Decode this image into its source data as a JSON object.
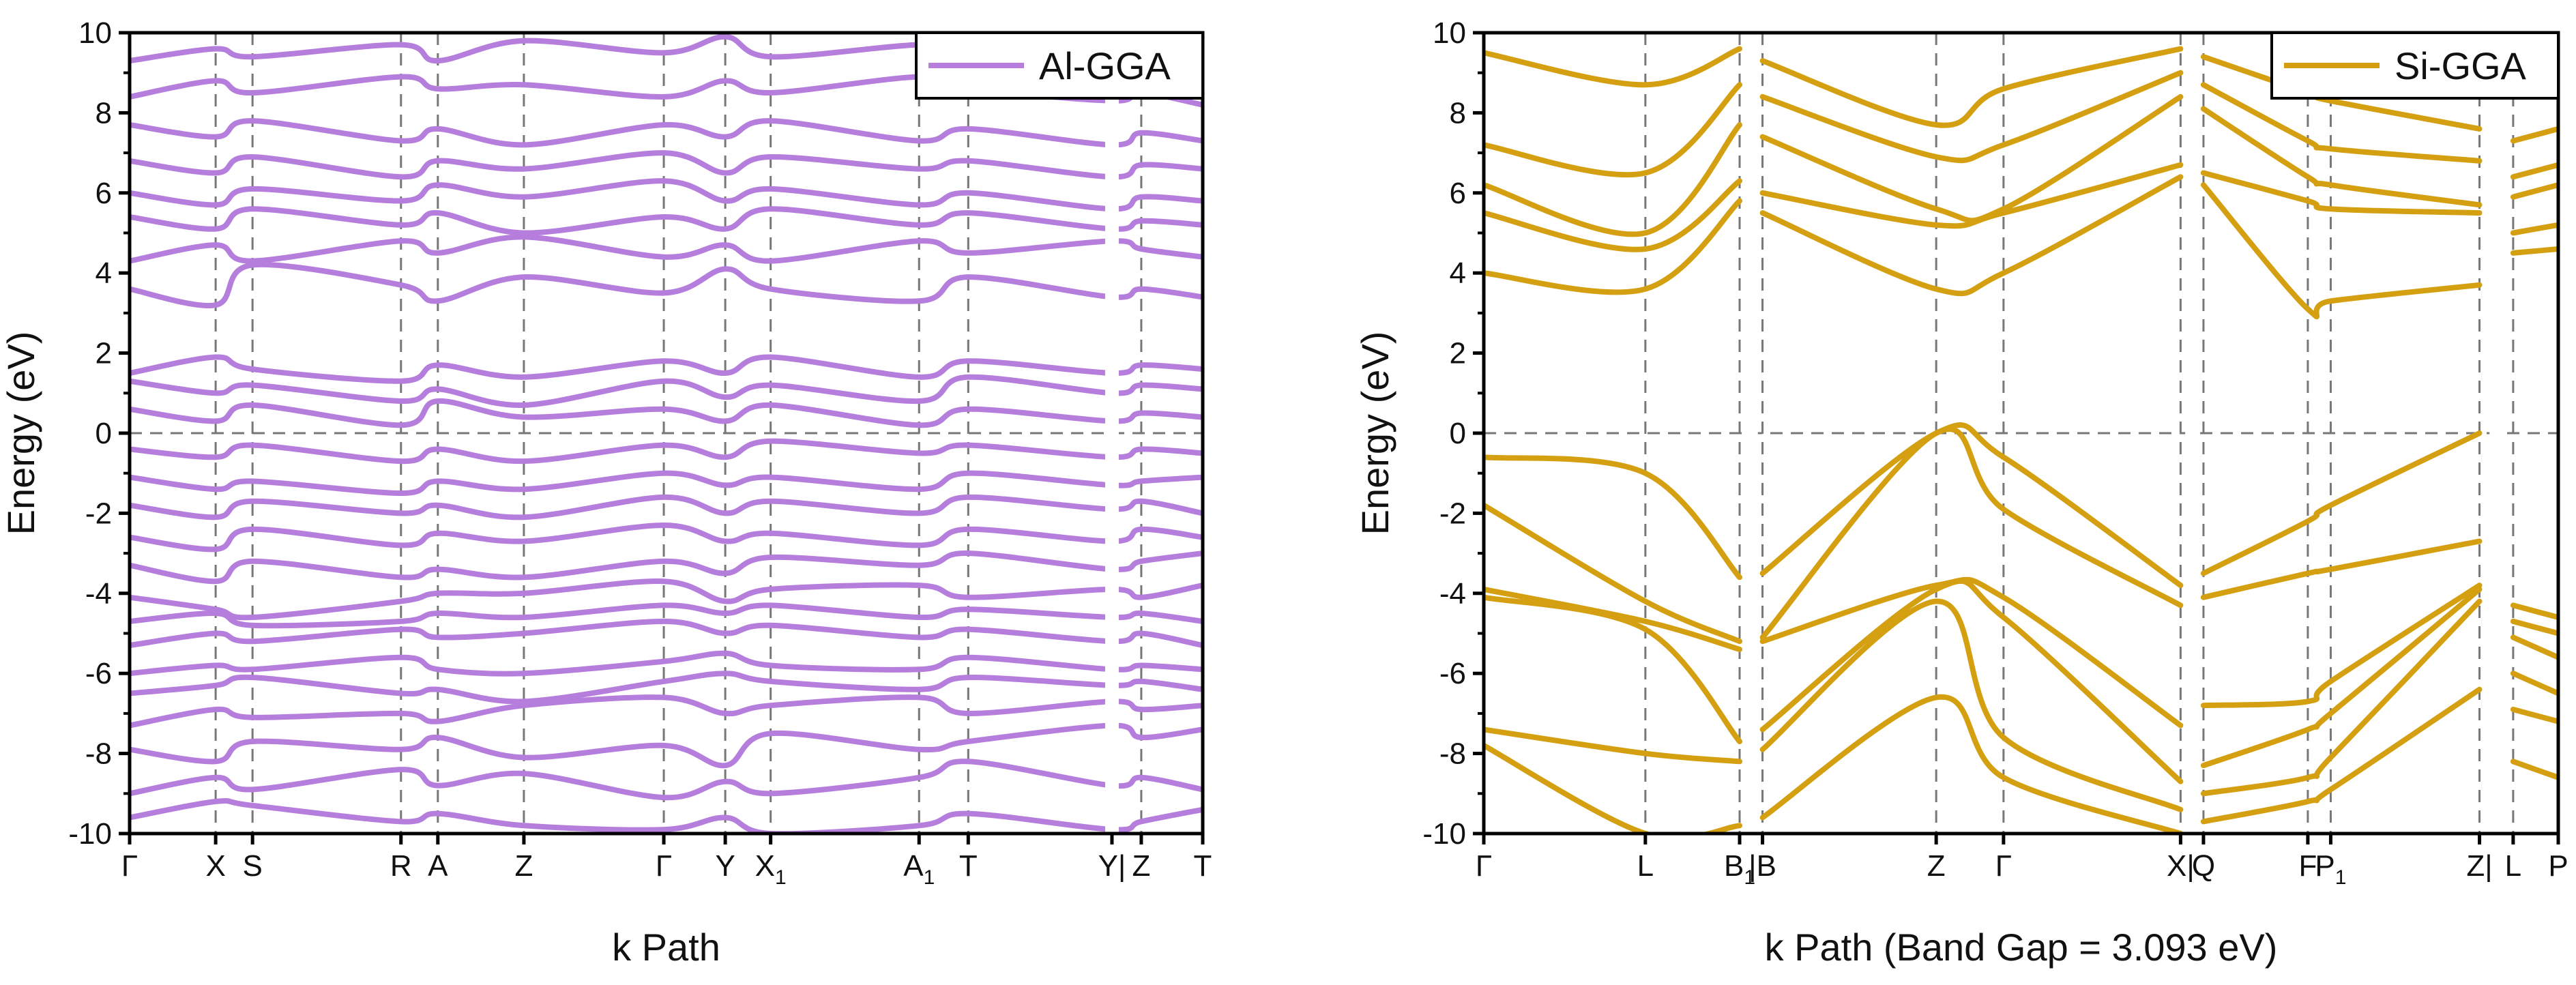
{
  "chart_data": [
    {
      "type": "line",
      "title": "",
      "legend": "Al-GGA",
      "legend_position": "top-right",
      "xlabel": "k Path",
      "ylabel": "Energy (eV)",
      "ylim": [
        -10,
        10
      ],
      "yticks": [
        -10,
        -8,
        -6,
        -4,
        -2,
        0,
        2,
        4,
        6,
        8,
        10
      ],
      "color": "#b57edc",
      "kpoints": [
        {
          "label": "Γ",
          "sub": "",
          "x": 0
        },
        {
          "label": "X",
          "sub": "",
          "x": 0.91
        },
        {
          "label": "S",
          "sub": "",
          "x": 1.3
        },
        {
          "label": "R",
          "sub": "",
          "x": 2.87
        },
        {
          "label": "A",
          "sub": "",
          "x": 3.26
        },
        {
          "label": "Z",
          "sub": "",
          "x": 4.17
        },
        {
          "label": "Γ",
          "sub": "",
          "x": 5.65
        },
        {
          "label": "Y",
          "sub": "",
          "x": 6.3
        },
        {
          "label": "X",
          "sub": "1",
          "x": 6.78
        },
        {
          "label": "A",
          "sub": "1",
          "x": 8.35
        },
        {
          "label": "T",
          "sub": "",
          "x": 8.87
        },
        {
          "label": "Y|",
          "sub": "",
          "x": 10.39
        },
        {
          "label": "Z",
          "sub": "",
          "x": 10.7
        },
        {
          "label": "T",
          "sub": "",
          "x": 11.35
        }
      ],
      "break_at": 10.39,
      "xmax": 11.35,
      "bands": [
        [
          -9.6,
          -9.2,
          -9.3,
          -9.7,
          -9.5,
          -9.8,
          -9.9,
          -9.6,
          -10.0,
          -9.8,
          -9.5,
          -9.9,
          -9.7,
          -9.4
        ],
        [
          -9.0,
          -8.6,
          -8.9,
          -8.4,
          -8.8,
          -8.5,
          -9.1,
          -8.7,
          -9.0,
          -8.6,
          -8.2,
          -8.8,
          -8.6,
          -8.9
        ],
        [
          -7.9,
          -8.2,
          -7.7,
          -7.9,
          -7.6,
          -8.1,
          -7.8,
          -8.3,
          -7.5,
          -7.9,
          -7.7,
          -7.3,
          -7.6,
          -7.4
        ],
        [
          -7.3,
          -6.9,
          -7.1,
          -7.0,
          -7.2,
          -6.8,
          -6.6,
          -7.0,
          -6.8,
          -6.6,
          -7.0,
          -6.7,
          -6.9,
          -6.8
        ],
        [
          -6.5,
          -6.3,
          -6.1,
          -6.5,
          -6.4,
          -6.7,
          -6.2,
          -6.0,
          -6.2,
          -6.4,
          -6.1,
          -6.3,
          -6.2,
          -6.4
        ],
        [
          -6.0,
          -5.8,
          -5.9,
          -5.6,
          -5.9,
          -6.0,
          -5.7,
          -5.5,
          -5.8,
          -5.9,
          -5.6,
          -5.9,
          -5.8,
          -5.9
        ],
        [
          -5.3,
          -5.0,
          -5.2,
          -4.9,
          -5.1,
          -5.0,
          -4.7,
          -5.0,
          -4.8,
          -5.1,
          -4.9,
          -5.2,
          -5.0,
          -5.3
        ],
        [
          -4.7,
          -4.5,
          -4.8,
          -4.7,
          -4.5,
          -4.6,
          -4.3,
          -4.5,
          -4.3,
          -4.6,
          -4.4,
          -4.6,
          -4.5,
          -4.7
        ],
        [
          -4.1,
          -4.4,
          -4.6,
          -4.2,
          -4.0,
          -4.0,
          -3.7,
          -4.2,
          -3.9,
          -3.8,
          -4.1,
          -3.9,
          -4.1,
          -3.8
        ],
        [
          -3.3,
          -3.7,
          -3.2,
          -3.6,
          -3.4,
          -3.6,
          -3.2,
          -3.5,
          -3.1,
          -3.3,
          -3.0,
          -3.4,
          -3.2,
          -3.0
        ],
        [
          -2.6,
          -2.9,
          -2.4,
          -2.8,
          -2.5,
          -2.7,
          -2.3,
          -2.7,
          -2.5,
          -2.8,
          -2.4,
          -2.7,
          -2.4,
          -2.6
        ],
        [
          -1.8,
          -2.1,
          -1.7,
          -2.0,
          -1.8,
          -2.1,
          -1.6,
          -2.0,
          -1.7,
          -2.0,
          -1.6,
          -1.9,
          -1.7,
          -2.0
        ],
        [
          -1.1,
          -1.4,
          -1.2,
          -1.5,
          -1.2,
          -1.4,
          -1.0,
          -1.3,
          -1.1,
          -1.4,
          -1.0,
          -1.3,
          -1.2,
          -1.1
        ],
        [
          -0.4,
          -0.6,
          -0.3,
          -0.7,
          -0.4,
          -0.7,
          -0.3,
          -0.6,
          -0.2,
          -0.5,
          -0.3,
          -0.6,
          -0.4,
          -0.5
        ],
        [
          0.6,
          0.3,
          0.7,
          0.2,
          0.8,
          0.4,
          0.6,
          0.3,
          0.7,
          0.2,
          0.6,
          0.3,
          0.5,
          0.4
        ],
        [
          1.3,
          1.0,
          1.2,
          0.8,
          1.1,
          0.7,
          1.3,
          0.9,
          1.2,
          0.8,
          1.4,
          1.0,
          1.2,
          1.1
        ],
        [
          1.5,
          1.9,
          1.6,
          1.3,
          1.7,
          1.4,
          1.8,
          1.5,
          1.9,
          1.4,
          1.8,
          1.5,
          1.7,
          1.6
        ],
        [
          3.6,
          3.2,
          4.2,
          3.7,
          3.3,
          3.9,
          3.5,
          4.1,
          3.6,
          3.3,
          3.9,
          3.4,
          3.6,
          3.4
        ],
        [
          4.3,
          4.7,
          4.3,
          4.8,
          4.5,
          4.9,
          4.4,
          4.7,
          4.3,
          4.8,
          4.5,
          4.8,
          4.6,
          4.4
        ],
        [
          5.4,
          5.1,
          5.6,
          5.2,
          5.5,
          5.0,
          5.4,
          5.1,
          5.6,
          5.2,
          5.5,
          5.1,
          5.3,
          5.2
        ],
        [
          6.0,
          5.7,
          6.1,
          5.8,
          6.2,
          5.9,
          6.3,
          5.8,
          6.1,
          5.7,
          6.0,
          5.6,
          5.9,
          5.8
        ],
        [
          6.8,
          6.5,
          6.9,
          6.4,
          6.8,
          6.6,
          7.0,
          6.5,
          6.9,
          6.6,
          6.8,
          6.4,
          6.7,
          6.6
        ],
        [
          7.7,
          7.4,
          7.8,
          7.3,
          7.6,
          7.2,
          7.7,
          7.4,
          7.8,
          7.3,
          7.6,
          7.2,
          7.5,
          7.3
        ],
        [
          8.4,
          8.8,
          8.5,
          8.9,
          8.6,
          8.7,
          8.4,
          8.8,
          8.5,
          8.9,
          8.6,
          8.3,
          8.5,
          8.2
        ],
        [
          9.3,
          9.6,
          9.4,
          9.7,
          9.3,
          9.8,
          9.5,
          9.9,
          9.4,
          9.7,
          9.5,
          9.8,
          9.6,
          9.4
        ]
      ]
    },
    {
      "type": "line",
      "title": "",
      "legend": "Si-GGA",
      "legend_position": "top-right",
      "xlabel": "k Path (Band Gap = 3.093 eV)",
      "ylabel": "Energy (eV)",
      "ylim": [
        -10,
        10
      ],
      "yticks": [
        -10,
        -8,
        -6,
        -4,
        -2,
        0,
        2,
        4,
        6,
        8,
        10
      ],
      "color": "#d4a011",
      "kpoints": [
        {
          "label": "Γ",
          "sub": "",
          "x": 0
        },
        {
          "label": "L",
          "sub": "",
          "x": 2.4
        },
        {
          "label": "B",
          "sub": "1",
          "x": 3.8
        },
        {
          "label": "|B",
          "sub": "",
          "x": 4.14
        },
        {
          "label": "Z",
          "sub": "",
          "x": 6.72
        },
        {
          "label": "Γ",
          "sub": "",
          "x": 7.72
        },
        {
          "label": "X|",
          "sub": "",
          "x": 10.35
        },
        {
          "label": "Q",
          "sub": "",
          "x": 10.69
        },
        {
          "label": "F",
          "sub": "",
          "x": 12.24
        },
        {
          "label": "P",
          "sub": "1",
          "x": 12.58
        },
        {
          "label": "Z|",
          "sub": "",
          "x": 14.79
        },
        {
          "label": "L",
          "sub": "",
          "x": 15.29
        },
        {
          "label": "P",
          "sub": "",
          "x": 15.96
        }
      ],
      "breaks": [
        3.97,
        10.52,
        15.04
      ],
      "xmax": 15.96,
      "valence_bands": [
        {
          "x": [
            0,
            2.4,
            3.8,
            4.14,
            6.72,
            7.72,
            10.35,
            10.69,
            12.24,
            12.58,
            14.79,
            15.29,
            15.96
          ],
          "y": [
            -0.6,
            -1.0,
            -3.6,
            -3.5,
            0.0,
            -0.6,
            -3.8,
            -3.5,
            -2.2,
            -1.8,
            0.0,
            -4.3,
            -4.6
          ]
        },
        {
          "x": [
            0,
            2.4,
            3.8,
            4.14,
            6.72,
            7.72,
            10.35,
            10.69,
            12.24,
            12.58,
            14.79,
            15.29,
            15.96
          ],
          "y": [
            -1.8,
            -4.2,
            -5.2,
            -5.1,
            0.0,
            -1.9,
            -4.3,
            -4.1,
            -3.5,
            -3.4,
            -2.7,
            -4.7,
            -5.0
          ]
        },
        {
          "x": [
            0,
            2.4,
            3.8,
            4.14,
            6.72,
            7.72,
            10.35,
            10.69,
            12.24,
            12.58,
            14.79,
            15.29,
            15.96
          ],
          "y": [
            -3.9,
            -4.7,
            -5.4,
            -5.2,
            -3.8,
            -4.1,
            -7.3,
            -6.8,
            -6.7,
            -6.2,
            -3.8,
            -5.1,
            -5.6
          ]
        },
        {
          "x": [
            0,
            2.4,
            3.8,
            4.14,
            6.72,
            7.72,
            10.35,
            10.69,
            12.24,
            12.58,
            14.79,
            15.29,
            15.96
          ],
          "y": [
            -4.1,
            -4.9,
            -7.7,
            -7.4,
            -3.9,
            -4.6,
            -8.7,
            -8.3,
            -7.4,
            -7.0,
            -3.9,
            -6.0,
            -6.5
          ]
        },
        {
          "x": [
            0,
            2.4,
            3.8,
            4.14,
            6.72,
            7.72,
            10.35,
            10.69,
            12.24,
            12.58,
            14.79,
            15.29,
            15.96
          ],
          "y": [
            -7.4,
            -8.0,
            -8.2,
            -7.9,
            -4.2,
            -7.6,
            -9.4,
            -9.0,
            -8.6,
            -8.1,
            -4.2,
            -6.9,
            -7.2
          ]
        },
        {
          "x": [
            0,
            2.4,
            3.8,
            4.14,
            6.72,
            7.72,
            10.35,
            10.69,
            12.24,
            12.58,
            14.79,
            15.29,
            15.96
          ],
          "y": [
            -7.8,
            -10.0,
            -9.8,
            -9.6,
            -6.6,
            -8.6,
            -10.0,
            -9.7,
            -9.2,
            -8.9,
            -6.4,
            -8.2,
            -8.6
          ]
        }
      ],
      "conduction_bands": [
        {
          "x": [
            0,
            2.4,
            3.8,
            4.14,
            6.72,
            7.72,
            10.35,
            10.69,
            12.24,
            12.58,
            14.79,
            15.29,
            15.96
          ],
          "y": [
            4.0,
            3.6,
            5.8,
            5.5,
            3.6,
            4.0,
            6.4,
            6.2,
            3.1,
            3.3,
            3.7,
            4.5,
            4.6
          ]
        },
        {
          "x": [
            0,
            2.4,
            3.8,
            4.14,
            6.72,
            7.72,
            10.35,
            10.69,
            12.24,
            12.58,
            14.79,
            15.29,
            15.96
          ],
          "y": [
            5.5,
            4.6,
            6.3,
            6.0,
            5.2,
            5.5,
            6.7,
            6.5,
            5.8,
            5.6,
            5.5,
            5.0,
            5.2
          ]
        },
        {
          "x": [
            0,
            2.4,
            3.8,
            4.14,
            6.72,
            7.72,
            10.35,
            10.69,
            12.24,
            12.58,
            14.79,
            15.29,
            15.96
          ],
          "y": [
            6.2,
            5.0,
            7.7,
            7.4,
            5.6,
            5.6,
            8.4,
            8.1,
            6.4,
            6.2,
            5.7,
            5.9,
            6.2
          ]
        },
        {
          "x": [
            0,
            2.4,
            3.8,
            4.14,
            6.72,
            7.72,
            10.35,
            10.69,
            12.24,
            12.58,
            14.79,
            15.29,
            15.96
          ],
          "y": [
            7.2,
            6.5,
            8.7,
            8.4,
            6.9,
            7.2,
            9.0,
            8.7,
            7.3,
            7.1,
            6.8,
            6.4,
            6.7
          ]
        },
        {
          "x": [
            0,
            2.4,
            3.8,
            4.14,
            6.72,
            7.72,
            10.35,
            10.69,
            12.24,
            12.58,
            14.79,
            15.29,
            15.96
          ],
          "y": [
            9.5,
            8.7,
            9.6,
            9.3,
            7.7,
            8.6,
            9.6,
            9.4,
            8.5,
            8.3,
            7.6,
            7.3,
            7.6
          ]
        }
      ]
    }
  ]
}
